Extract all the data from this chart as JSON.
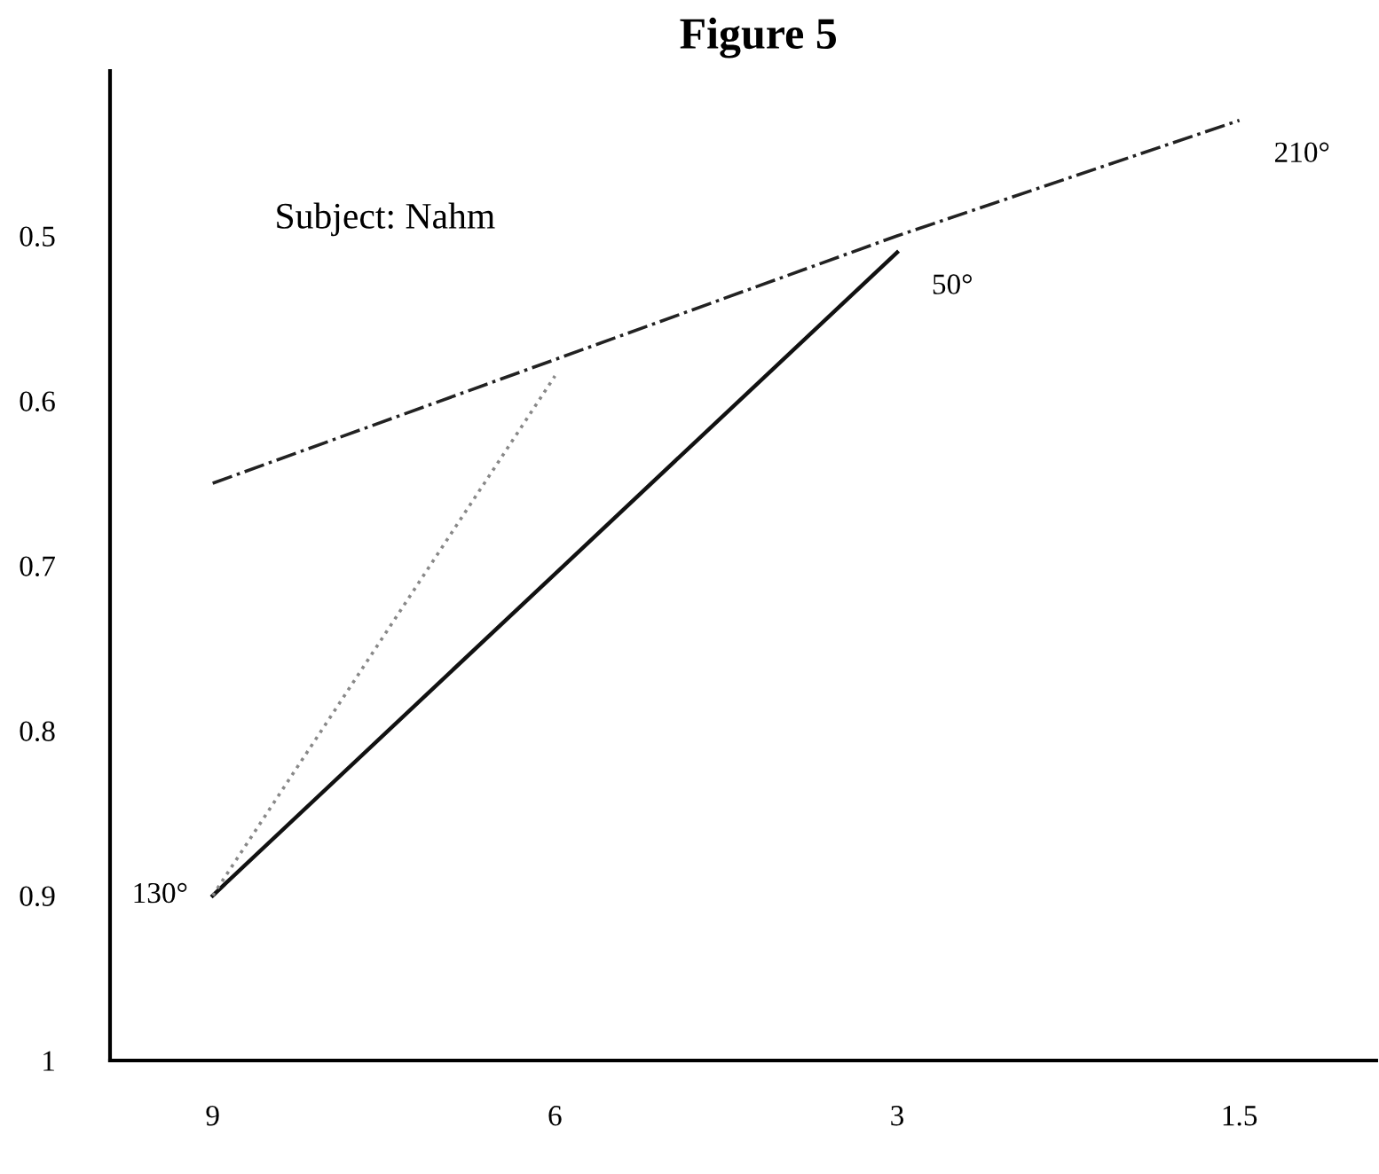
{
  "chart_data": {
    "type": "line",
    "title": "Figure 5",
    "categories": [
      "9",
      "6",
      "3",
      "1.5"
    ],
    "series": [
      {
        "color": "#111111",
        "line_style": "solid",
        "values": [
          0.9,
          0.705,
          0.51,
          null
        ]
      },
      {
        "color": "#888888",
        "line_style": "dotted",
        "values": [
          0.9,
          0.585,
          null,
          null
        ]
      },
      {
        "color": "#222222",
        "line_style": "dashdot",
        "values": [
          0.65,
          0.575,
          0.5,
          0.43
        ]
      }
    ],
    "ylim": [
      1,
      0.4
    ],
    "yticks": [
      0.5,
      0.6,
      0.7,
      0.8,
      0.9,
      1
    ],
    "grid": false,
    "legend": false,
    "marker": "none",
    "annotations": [
      "Subject: Nahm",
      {
        "text": "130°",
        "x": "9",
        "y": 0.9
      },
      {
        "text": "50°",
        "x": "3",
        "y": 0.51
      },
      {
        "text": "210°",
        "x": "1.5",
        "y": 0.43
      }
    ]
  }
}
